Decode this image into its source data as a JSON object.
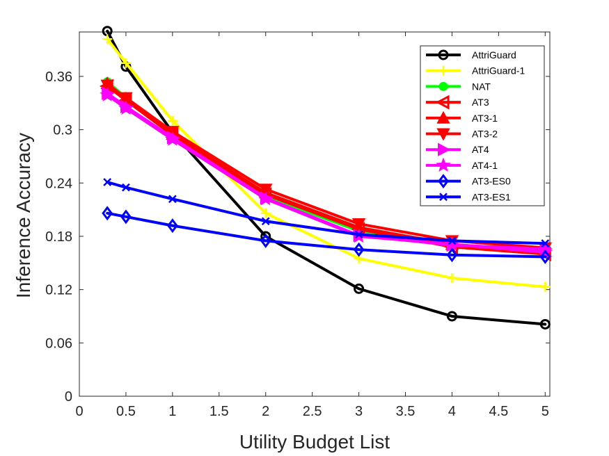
{
  "chart_data": {
    "type": "line",
    "xlabel": "Utility Budget List",
    "ylabel": "Inference Accuracy",
    "xlim": [
      0,
      5.05
    ],
    "ylim": [
      0,
      0.41
    ],
    "xticks": [
      0,
      0.5,
      1,
      1.5,
      2,
      2.5,
      3,
      3.5,
      4,
      4.5,
      5
    ],
    "xtick_labels": [
      "0",
      "0.5",
      "1",
      "1.5",
      "2",
      "2.5",
      "3",
      "3.5",
      "4",
      "4.5",
      "5"
    ],
    "yticks": [
      0,
      0.06,
      0.12,
      0.18,
      0.24,
      0.3,
      0.36
    ],
    "ytick_labels": [
      "0",
      "0.06",
      "0.12",
      "0.18",
      "0.24",
      "0.3",
      "0.36"
    ],
    "grid": false,
    "legend_position": "top-right",
    "x": [
      0.3,
      0.5,
      1,
      2,
      3,
      4,
      5
    ],
    "series": [
      {
        "name": "AttriGuard",
        "color": "#000000",
        "marker": "circle",
        "values": [
          0.411,
          0.371,
          0.297,
          0.18,
          0.121,
          0.09,
          0.081
        ]
      },
      {
        "name": "AttriGuard-1",
        "color": "#ffff00",
        "marker": "plus",
        "values": [
          0.402,
          0.375,
          0.31,
          0.206,
          0.155,
          0.133,
          0.123
        ]
      },
      {
        "name": "NAT",
        "color": "#00ff00",
        "marker": "dot",
        "values": [
          0.354,
          0.336,
          0.297,
          0.225,
          0.186,
          0.17,
          0.162
        ]
      },
      {
        "name": "AT3",
        "color": "#ff0000",
        "marker": "triangle-left",
        "values": [
          0.349,
          0.333,
          0.294,
          0.227,
          0.188,
          0.168,
          0.16
        ]
      },
      {
        "name": "AT3-1",
        "color": "#ff0000",
        "marker": "triangle-up",
        "values": [
          0.352,
          0.335,
          0.295,
          0.229,
          0.19,
          0.171,
          0.163
        ]
      },
      {
        "name": "AT3-2",
        "color": "#ff0000",
        "marker": "triangle-down",
        "values": [
          0.35,
          0.336,
          0.298,
          0.233,
          0.194,
          0.175,
          0.167
        ]
      },
      {
        "name": "AT4",
        "color": "#ff00ff",
        "marker": "triangle-right",
        "values": [
          0.341,
          0.326,
          0.291,
          0.223,
          0.181,
          0.17,
          0.166
        ]
      },
      {
        "name": "AT4-1",
        "color": "#ff00ff",
        "marker": "star",
        "values": [
          0.339,
          0.324,
          0.289,
          0.222,
          0.18,
          0.171,
          0.162
        ]
      },
      {
        "name": "AT3-ES0",
        "color": "#0000ff",
        "marker": "diamond",
        "values": [
          0.206,
          0.202,
          0.192,
          0.175,
          0.165,
          0.159,
          0.157
        ]
      },
      {
        "name": "AT3-ES1",
        "color": "#0000ff",
        "marker": "x",
        "values": [
          0.241,
          0.235,
          0.222,
          0.197,
          0.182,
          0.175,
          0.172
        ]
      }
    ]
  }
}
